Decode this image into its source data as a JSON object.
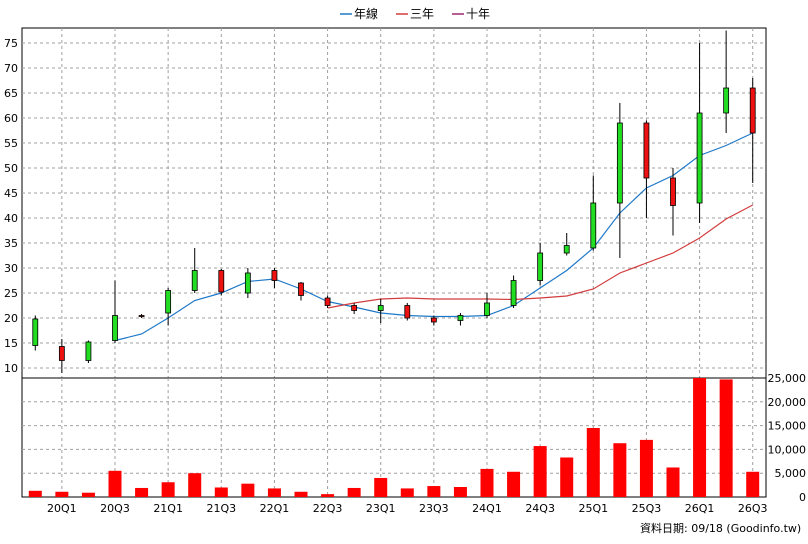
{
  "legend": [
    {
      "label": "年線",
      "color": "#1e78c8"
    },
    {
      "label": "三年",
      "color": "#d23c3c"
    },
    {
      "label": "十年",
      "color": "#a0286e"
    }
  ],
  "source_label": "資料日期: 09/18  (Goodinfo.tw)",
  "chart_data": [
    {
      "type": "candlestick",
      "y_ticks": [
        10,
        15,
        20,
        25,
        30,
        35,
        40,
        45,
        50,
        55,
        60,
        65,
        70,
        75
      ],
      "ylim": [
        8,
        78
      ],
      "x_tick_labels": [
        "20Q1",
        "20Q3",
        "21Q1",
        "21Q3",
        "22Q1",
        "22Q3",
        "23Q1",
        "23Q3",
        "24Q1",
        "24Q3",
        "25Q1",
        "25Q3",
        "26Q1",
        "26Q3"
      ],
      "candles": [
        {
          "o": 14.5,
          "h": 20.5,
          "l": 13.5,
          "c": 19.8
        },
        {
          "o": 14.3,
          "h": 15.8,
          "l": 9.0,
          "c": 11.5
        },
        {
          "o": 11.5,
          "h": 15.5,
          "l": 11.0,
          "c": 15.2
        },
        {
          "o": 15.5,
          "h": 27.5,
          "l": 15.0,
          "c": 20.5
        },
        {
          "o": 20.5,
          "h": 20.8,
          "l": 20.0,
          "c": 20.3
        },
        {
          "o": 21.0,
          "h": 26.0,
          "l": 18.5,
          "c": 25.5
        },
        {
          "o": 25.5,
          "h": 34.0,
          "l": 25.0,
          "c": 29.5
        },
        {
          "o": 29.5,
          "h": 29.8,
          "l": 24.5,
          "c": 25.2
        },
        {
          "o": 25.0,
          "h": 30.0,
          "l": 24.0,
          "c": 29.0
        },
        {
          "o": 29.5,
          "h": 30.0,
          "l": 26.0,
          "c": 27.5
        },
        {
          "o": 27.0,
          "h": 27.2,
          "l": 23.5,
          "c": 24.5
        },
        {
          "o": 24.0,
          "h": 24.5,
          "l": 22.0,
          "c": 22.5
        },
        {
          "o": 22.5,
          "h": 23.0,
          "l": 20.8,
          "c": 21.5
        },
        {
          "o": 21.5,
          "h": 23.8,
          "l": 19.0,
          "c": 22.5
        },
        {
          "o": 22.5,
          "h": 23.0,
          "l": 19.5,
          "c": 20.0
        },
        {
          "o": 20.0,
          "h": 20.5,
          "l": 18.5,
          "c": 19.2
        },
        {
          "o": 19.5,
          "h": 21.0,
          "l": 18.5,
          "c": 20.5
        },
        {
          "o": 20.5,
          "h": 25.0,
          "l": 20.0,
          "c": 23.0
        },
        {
          "o": 22.5,
          "h": 28.5,
          "l": 22.0,
          "c": 27.5
        },
        {
          "o": 27.5,
          "h": 35.0,
          "l": 26.5,
          "c": 33.0
        },
        {
          "o": 33.0,
          "h": 37.0,
          "l": 32.5,
          "c": 34.5
        },
        {
          "o": 34.0,
          "h": 48.5,
          "l": 33.5,
          "c": 43.0
        },
        {
          "o": 43.0,
          "h": 63.0,
          "l": 32.0,
          "c": 59.0
        },
        {
          "o": 59.0,
          "h": 59.5,
          "l": 40.0,
          "c": 48.0
        },
        {
          "o": 48.0,
          "h": 50.0,
          "l": 36.5,
          "c": 42.5
        },
        {
          "o": 43.0,
          "h": 75.0,
          "l": 39.0,
          "c": 61.0
        },
        {
          "o": 61.0,
          "h": 77.5,
          "l": 57.0,
          "c": 66.0
        },
        {
          "o": 66.0,
          "h": 68.0,
          "l": 47.0,
          "c": 57.0
        }
      ],
      "series": [
        {
          "name": "年線",
          "values": [
            null,
            null,
            null,
            15.5,
            16.8,
            20.0,
            23.5,
            25.0,
            27.3,
            27.8,
            25.8,
            23.3,
            22.2,
            21.0,
            20.5,
            20.3,
            20.3,
            20.5,
            22.5,
            26.0,
            29.5,
            34.0,
            41.0,
            46.0,
            48.5,
            52.5,
            54.5,
            57.0
          ]
        },
        {
          "name": "三年",
          "values": [
            null,
            null,
            null,
            null,
            null,
            null,
            null,
            null,
            null,
            null,
            null,
            22.0,
            23.0,
            23.8,
            24.0,
            23.8,
            23.8,
            23.8,
            23.7,
            24.0,
            24.4,
            25.8,
            29.0,
            31.0,
            33.0,
            36.0,
            39.8,
            42.6
          ]
        }
      ]
    },
    {
      "type": "bar",
      "y_ticks": [
        0,
        5000,
        10000,
        15000,
        20000,
        25000
      ],
      "y_tick_labels": [
        "0",
        "5,000",
        "10,000",
        "15,000",
        "20,000",
        "25,000"
      ],
      "ylim": [
        0,
        25000
      ],
      "values": [
        1300,
        1100,
        900,
        5500,
        1900,
        3100,
        5000,
        2000,
        2800,
        1800,
        1100,
        600,
        1900,
        4000,
        1800,
        2300,
        2100,
        5900,
        5300,
        10700,
        8300,
        14500,
        11300,
        12000,
        6200,
        25000,
        24700,
        5300
      ]
    }
  ]
}
